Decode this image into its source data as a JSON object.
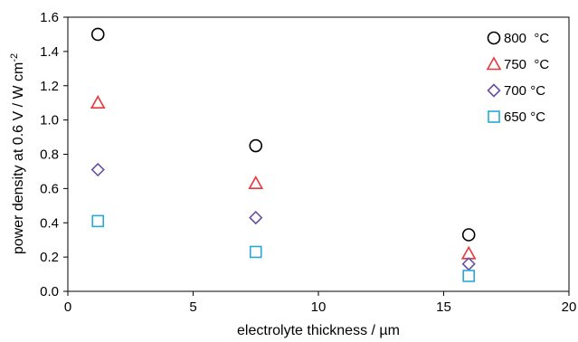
{
  "chart_data": {
    "type": "scatter",
    "xlabel": "electrolyte thickness / µm",
    "ylabel": {
      "text": "power density at 0.6 V / W cm",
      "superscript": "-2"
    },
    "xlim": [
      0,
      20
    ],
    "ylim": [
      0,
      1.6
    ],
    "x_ticks": [
      "0",
      "5",
      "10",
      "15",
      "20"
    ],
    "y_ticks": [
      "0.0",
      "0.2",
      "0.4",
      "0.6",
      "0.8",
      "1.0",
      "1.2",
      "1.4",
      "1.6"
    ],
    "grid": false,
    "legend_position": "top-right",
    "series": [
      {
        "name": "800  °C",
        "marker": "circle",
        "color": "#000000",
        "x": [
          1.2,
          7.5,
          16.0
        ],
        "y": [
          1.5,
          0.85,
          0.33
        ]
      },
      {
        "name": "750  °C",
        "marker": "triangle",
        "color": "#e8383d",
        "x": [
          1.2,
          7.5,
          16.0
        ],
        "y": [
          1.1,
          0.63,
          0.22
        ]
      },
      {
        "name": "700 °C",
        "marker": "diamond",
        "color": "#6a4fa3",
        "x": [
          1.2,
          7.5,
          16.0
        ],
        "y": [
          0.71,
          0.43,
          0.16
        ]
      },
      {
        "name": "650 °C",
        "marker": "square",
        "color": "#26a9d8",
        "x": [
          1.2,
          7.5,
          16.0
        ],
        "y": [
          0.41,
          0.23,
          0.09
        ]
      }
    ]
  }
}
